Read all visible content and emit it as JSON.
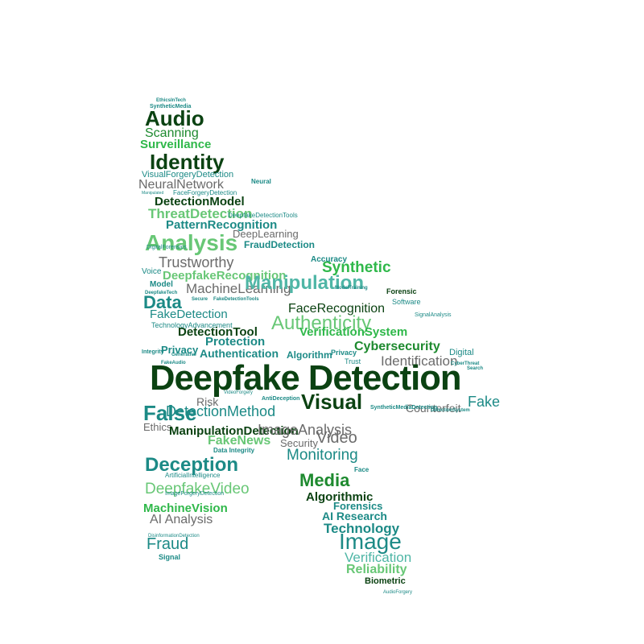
{
  "colors": {
    "dark": "#0b4212",
    "green": "#1e8a2f",
    "bright": "#2fb84a",
    "teal": "#1c8a86",
    "lightgreen": "#68c776",
    "gray": "#6b6b6b",
    "lightteal": "#4fb6a6"
  },
  "cloud": {
    "main": "Deepfake Detection",
    "words": [
      {
        "text": "EthicsInTech",
        "c": "teal"
      },
      {
        "text": "SyntheticMedia",
        "c": "teal"
      },
      {
        "text": "Audio",
        "c": "dark"
      },
      {
        "text": "Scanning",
        "c": "green"
      },
      {
        "text": "Surveillance",
        "c": "bright"
      },
      {
        "text": "Identity",
        "c": "dark"
      },
      {
        "text": "VisualForgeryDetection",
        "c": "teal"
      },
      {
        "text": "NeuralNetwork",
        "c": "gray"
      },
      {
        "text": "FaceForgeryDetection",
        "c": "teal"
      },
      {
        "text": "Manipulated",
        "c": "teal"
      },
      {
        "text": "Neural",
        "c": "teal"
      },
      {
        "text": "DetectionModel",
        "c": "dark"
      },
      {
        "text": "ThreatDetection",
        "c": "lightgreen"
      },
      {
        "text": "PatternRecognition",
        "c": "teal"
      },
      {
        "text": "DeepfakeDetectionTools",
        "c": "teal"
      },
      {
        "text": "Analysis",
        "c": "lightgreen"
      },
      {
        "text": "DeepLearning",
        "c": "gray"
      },
      {
        "text": "FraudDetection",
        "c": "teal"
      },
      {
        "text": "Trustworthy",
        "c": "gray"
      },
      {
        "text": "DeepfakeRecognition",
        "c": "lightgreen"
      },
      {
        "text": "Synthetic",
        "c": "bright"
      },
      {
        "text": "Accuracy",
        "c": "teal"
      },
      {
        "text": "Model",
        "c": "teal"
      },
      {
        "text": "MachineLearning",
        "c": "gray"
      },
      {
        "text": "Manipulation",
        "c": "lightteal"
      },
      {
        "text": "Data",
        "c": "teal"
      },
      {
        "text": "FakeDetection",
        "c": "teal"
      },
      {
        "text": "FaceRecognition",
        "c": "dark"
      },
      {
        "text": "Forensic",
        "c": "dark"
      },
      {
        "text": "Software",
        "c": "teal"
      },
      {
        "text": "TechnologyAdvancement",
        "c": "teal"
      },
      {
        "text": "DetectionTool",
        "c": "dark"
      },
      {
        "text": "Authenticity",
        "c": "lightgreen"
      },
      {
        "text": "SignalAnalysis",
        "c": "teal"
      },
      {
        "text": "Privacy",
        "c": "teal"
      },
      {
        "text": "Protection",
        "c": "teal"
      },
      {
        "text": "VerificationSystem",
        "c": "bright"
      },
      {
        "text": "Cybersecurity",
        "c": "green"
      },
      {
        "text": "Authentication",
        "c": "teal"
      },
      {
        "text": "Algorithm",
        "c": "teal"
      },
      {
        "text": "Privacy",
        "c": "teal"
      },
      {
        "text": "Trust",
        "c": "teal"
      },
      {
        "text": "Identification",
        "c": "gray"
      },
      {
        "text": "Digital",
        "c": "teal"
      },
      {
        "text": "Integrity",
        "c": "teal"
      },
      {
        "text": "FakeAudio",
        "c": "teal"
      },
      {
        "text": "Risk",
        "c": "gray"
      },
      {
        "text": "AntiDeception",
        "c": "teal"
      },
      {
        "text": "False",
        "c": "teal"
      },
      {
        "text": "DetectionMethod",
        "c": "teal"
      },
      {
        "text": "Visual",
        "c": "dark"
      },
      {
        "text": "Counterfeit",
        "c": "gray"
      },
      {
        "text": "Fake",
        "c": "teal"
      },
      {
        "text": "SyntheticMediaDetection",
        "c": "teal"
      },
      {
        "text": "Ethics",
        "c": "gray"
      },
      {
        "text": "ManipulationDetection",
        "c": "dark"
      },
      {
        "text": "FakeNews",
        "c": "lightgreen"
      },
      {
        "text": "ImageAnalysis",
        "c": "gray"
      },
      {
        "text": "Security",
        "c": "gray"
      },
      {
        "text": "Video",
        "c": "gray"
      },
      {
        "text": "Deception",
        "c": "teal"
      },
      {
        "text": "Monitoring",
        "c": "teal"
      },
      {
        "text": "DeepfakeVideo",
        "c": "lightgreen"
      },
      {
        "text": "Media",
        "c": "green"
      },
      {
        "text": "Algorithmic",
        "c": "dark"
      },
      {
        "text": "MachineVision",
        "c": "bright"
      },
      {
        "text": "Forensics",
        "c": "teal"
      },
      {
        "text": "AI Research",
        "c": "teal"
      },
      {
        "text": "AI Analysis",
        "c": "gray"
      },
      {
        "text": "Technology",
        "c": "teal"
      },
      {
        "text": "Image",
        "c": "teal"
      },
      {
        "text": "Fraud",
        "c": "teal"
      },
      {
        "text": "Signal",
        "c": "teal"
      },
      {
        "text": "Verification",
        "c": "lightteal"
      },
      {
        "text": "Reliability",
        "c": "lightgreen"
      },
      {
        "text": "Biometric",
        "c": "dark"
      },
      {
        "text": "ArtificialIntelligence",
        "c": "teal"
      },
      {
        "text": "Data Integrity",
        "c": "teal"
      },
      {
        "text": "Face",
        "c": "teal"
      },
      {
        "text": "ImageForgeryDetection",
        "c": "teal"
      },
      {
        "text": "DisinformationDetection",
        "c": "teal"
      },
      {
        "text": "AudioForgery",
        "c": "teal"
      },
      {
        "text": "CyberThreat",
        "c": "teal"
      },
      {
        "text": "Search",
        "c": "teal"
      },
      {
        "text": "DeepfakeTech",
        "c": "teal"
      },
      {
        "text": "Voice",
        "c": "teal"
      },
      {
        "text": "DigitalForensics",
        "c": "teal"
      },
      {
        "text": "ModelTraining",
        "c": "teal"
      },
      {
        "text": "Secure",
        "c": "teal"
      },
      {
        "text": "FakeDetectionTools",
        "c": "teal"
      },
      {
        "text": "Generative",
        "c": "teal"
      },
      {
        "text": "VideoForgery",
        "c": "teal"
      },
      {
        "text": "DetectionSystem",
        "c": "teal"
      }
    ]
  }
}
